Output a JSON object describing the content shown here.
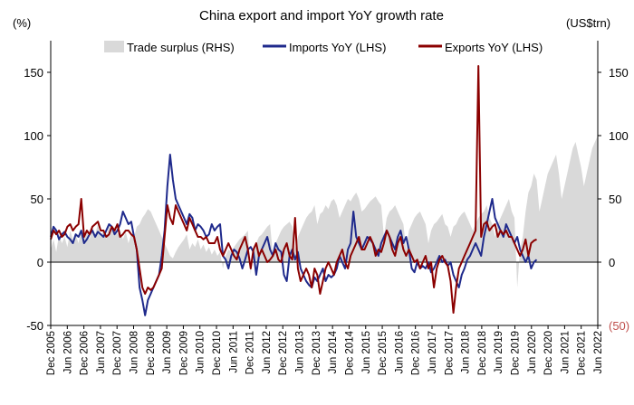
{
  "chart_data": {
    "type": "line",
    "title": "China export and import YoY growth rate",
    "left_axis_label": "(%)",
    "right_axis_label": "(US$trn)",
    "ylim": [
      -50,
      175
    ],
    "left_ticks": [
      "150",
      "100",
      "50",
      "0",
      "-50"
    ],
    "left_tick_values": [
      150,
      100,
      50,
      0,
      -50
    ],
    "right_ticks": [
      "150",
      "100",
      "50",
      "0",
      "(50)"
    ],
    "right_tick_values": [
      150,
      100,
      50,
      0,
      -50
    ],
    "right_tick_colors": [
      "#000000",
      "#000000",
      "#000000",
      "#000000",
      "#c0504d"
    ],
    "x_ticks": [
      "Dec 2005",
      "Jun 2006",
      "Dec 2006",
      "Jun 2007",
      "Dec 2007",
      "Jun 2008",
      "Dec 2008",
      "Jun 2009",
      "Dec 2009",
      "Jun 2010",
      "Dec 2010",
      "Jun 2011",
      "Dec 2011",
      "Jun 2012",
      "Dec 2012",
      "Jun 2013",
      "Dec 2013",
      "Jun 2014",
      "Dec 2014",
      "Jun 2015",
      "Dec 2015",
      "Jun 2016",
      "Dec 2016",
      "Jun 2017",
      "Dec 2017",
      "Jun 2018",
      "Dec 2018",
      "Jun 2019",
      "Dec 2019",
      "Jun 2020",
      "Dec 2020",
      "Jun 2021",
      "Dec 2021",
      "Jun 2022"
    ],
    "legend": [
      {
        "name": "Trade surplus (RHS)",
        "kind": "area",
        "color": "#d9d9d9"
      },
      {
        "name": "Imports YoY (LHS)",
        "kind": "line",
        "color": "#1f2a8c"
      },
      {
        "name": "Exports YoY (LHS)",
        "kind": "line",
        "color": "#8b0000"
      }
    ],
    "series": [
      {
        "name": "Trade surplus (RHS)",
        "values": [
          10,
          18,
          8,
          22,
          15,
          20,
          12,
          25,
          18,
          22,
          15,
          26,
          20,
          24,
          18,
          28,
          22,
          30,
          20,
          26,
          18,
          30,
          25,
          28,
          22,
          26,
          18,
          24,
          15,
          22,
          20,
          28,
          30,
          35,
          38,
          42,
          40,
          35,
          30,
          25,
          20,
          15,
          10,
          5,
          3,
          8,
          12,
          15,
          18,
          22,
          10,
          15,
          12,
          18,
          10,
          14,
          8,
          12,
          6,
          10,
          5,
          8,
          -5,
          5,
          10,
          8,
          12,
          15,
          18,
          20,
          22,
          25,
          -10,
          12,
          15,
          20,
          22,
          25,
          28,
          30,
          5,
          15,
          20,
          25,
          28,
          30,
          32,
          28,
          10,
          20,
          25,
          30,
          35,
          38,
          40,
          45,
          30,
          38,
          40,
          45,
          42,
          48,
          50,
          45,
          35,
          40,
          45,
          50,
          48,
          52,
          55,
          50,
          40,
          42,
          45,
          48,
          50,
          52,
          48,
          45,
          20,
          35,
          40,
          42,
          45,
          40,
          35,
          30,
          10,
          25,
          30,
          35,
          38,
          40,
          35,
          30,
          15,
          25,
          30,
          32,
          35,
          38,
          30,
          28,
          20,
          28,
          30,
          35,
          38,
          40,
          35,
          30,
          25,
          30,
          35,
          38,
          40,
          45,
          35,
          30,
          20,
          30,
          35,
          40,
          45,
          50,
          40,
          35,
          -20,
          10,
          20,
          40,
          55,
          60,
          70,
          65,
          40,
          50,
          60,
          70,
          75,
          80,
          85,
          70,
          50,
          60,
          70,
          80,
          90,
          95,
          85,
          75,
          60,
          70,
          80,
          90,
          95,
          100
        ]
      },
      {
        "name": "Imports YoY (LHS)",
        "values": [
          20,
          28,
          25,
          18,
          22,
          24,
          20,
          18,
          15,
          22,
          20,
          25,
          15,
          18,
          22,
          25,
          20,
          24,
          22,
          20,
          25,
          30,
          28,
          22,
          25,
          30,
          40,
          35,
          30,
          32,
          20,
          10,
          -20,
          -30,
          -42,
          -30,
          -25,
          -20,
          -15,
          -10,
          5,
          25,
          60,
          85,
          65,
          50,
          45,
          40,
          35,
          30,
          38,
          35,
          25,
          30,
          28,
          25,
          20,
          22,
          30,
          25,
          28,
          30,
          5,
          2,
          -5,
          5,
          10,
          8,
          3,
          -5,
          2,
          10,
          12,
          8,
          -10,
          5,
          10,
          15,
          20,
          10,
          5,
          15,
          10,
          8,
          -10,
          -15,
          5,
          10,
          2,
          8,
          -5,
          -10,
          -15,
          -18,
          -20,
          -12,
          -15,
          -10,
          -5,
          -15,
          -10,
          -12,
          -10,
          -5,
          5,
          0,
          -5,
          10,
          15,
          40,
          20,
          15,
          10,
          15,
          20,
          18,
          15,
          10,
          5,
          15,
          20,
          25,
          20,
          15,
          10,
          20,
          25,
          15,
          20,
          10,
          -5,
          -8,
          0,
          -5,
          -3,
          -5,
          0,
          -8,
          -5,
          0,
          5,
          0,
          2,
          -3,
          0,
          -10,
          -15,
          -20,
          -10,
          -5,
          2,
          5,
          10,
          15,
          10,
          5,
          20,
          30,
          40,
          50,
          35,
          30,
          25,
          20,
          30,
          25,
          20,
          15,
          20,
          10,
          5,
          0,
          5,
          -5,
          0,
          2
        ]
      },
      {
        "name": "Exports YoY (LHS)",
        "values": [
          18,
          25,
          22,
          25,
          20,
          22,
          28,
          30,
          25,
          28,
          30,
          50,
          20,
          25,
          22,
          28,
          30,
          32,
          25,
          25,
          20,
          22,
          28,
          25,
          30,
          20,
          22,
          25,
          25,
          22,
          20,
          10,
          -5,
          -20,
          -25,
          -20,
          -22,
          -20,
          -15,
          -10,
          -5,
          20,
          45,
          35,
          30,
          45,
          40,
          35,
          30,
          25,
          35,
          30,
          25,
          20,
          20,
          18,
          20,
          15,
          15,
          15,
          20,
          10,
          5,
          10,
          15,
          10,
          5,
          2,
          10,
          15,
          20,
          10,
          -5,
          10,
          15,
          5,
          10,
          5,
          0,
          2,
          5,
          10,
          2,
          0,
          10,
          15,
          5,
          2,
          35,
          -5,
          -15,
          -10,
          -5,
          -10,
          -20,
          -5,
          -10,
          -25,
          -15,
          -5,
          0,
          -5,
          -10,
          0,
          5,
          10,
          0,
          -5,
          5,
          10,
          15,
          20,
          10,
          10,
          15,
          20,
          15,
          5,
          10,
          8,
          15,
          25,
          20,
          10,
          5,
          15,
          20,
          10,
          5,
          10,
          5,
          0,
          2,
          -5,
          0,
          5,
          -5,
          0,
          -20,
          -5,
          2,
          5,
          0,
          -3,
          -15,
          -40,
          -20,
          -5,
          0,
          5,
          10,
          15,
          20,
          25,
          155,
          20,
          30,
          32,
          25,
          28,
          30,
          20,
          25,
          22,
          25,
          20,
          20,
          15,
          10,
          5,
          10,
          18,
          5,
          15,
          17,
          18
        ]
      }
    ]
  }
}
